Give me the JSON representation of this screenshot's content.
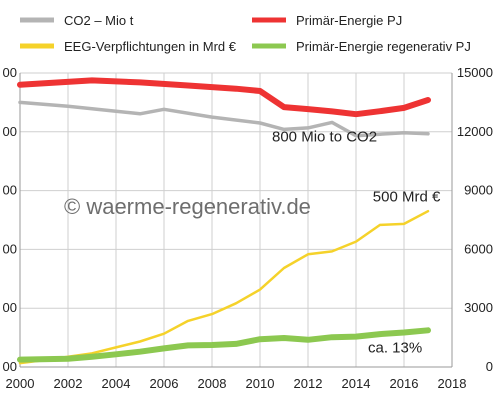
{
  "chart_data": {
    "type": "line",
    "title": "",
    "xlabel": "",
    "ylabel": "",
    "xlim": [
      2000,
      2018
    ],
    "x_ticks": [
      "2000",
      "2002",
      "2004",
      "2006",
      "2008",
      "2010",
      "2012",
      "2014",
      "2016",
      "2018"
    ],
    "y_right_lim": [
      0,
      15000
    ],
    "y_right_ticks": [
      "0",
      "3000",
      "6000",
      "9000",
      "12000",
      "15000"
    ],
    "y_left_ticks": [
      "00",
      "00",
      "00",
      "00",
      "00",
      "00"
    ],
    "grid": true,
    "legend_position": "top",
    "legend": [
      {
        "label": "CO2 – Mio t",
        "color": "#b4b4b4"
      },
      {
        "label": "Primär-Energie PJ",
        "color": "#ee3333"
      },
      {
        "label": "EEG-Verpflichtungen in Mrd €",
        "color": "#f5d22a"
      },
      {
        "label": "Primär-Energie regenerativ PJ",
        "color": "#8cc850"
      }
    ],
    "series": [
      {
        "name": "Primär-Energie PJ",
        "color": "#ee3333",
        "x": [
          2000,
          2003,
          2005,
          2007,
          2009,
          2010,
          2011,
          2012,
          2013,
          2014,
          2015,
          2016,
          2017
        ],
        "values": [
          14400,
          14620,
          14520,
          14360,
          14200,
          14080,
          13260,
          13160,
          13040,
          12900,
          13050,
          13220,
          13620
        ]
      },
      {
        "name": "CO2 – Mio t",
        "color": "#b4b4b4",
        "x": [
          2000,
          2002,
          2004,
          2005,
          2006,
          2008,
          2010,
          2011,
          2012,
          2013,
          2014,
          2015,
          2016,
          2017
        ],
        "values": [
          13500,
          13300,
          13050,
          12920,
          13150,
          12750,
          12450,
          12120,
          12200,
          12480,
          11800,
          11880,
          11950,
          11900
        ]
      },
      {
        "name": "EEG-Verpflichtungen in Mrd €",
        "color": "#f5d22a",
        "x": [
          2000,
          2001,
          2002,
          2003,
          2004,
          2005,
          2006,
          2007,
          2008,
          2009,
          2010,
          2011,
          2012,
          2013,
          2014,
          2015,
          2016,
          2017
        ],
        "values": [
          200,
          350,
          520,
          700,
          1000,
          1300,
          1700,
          2350,
          2700,
          3250,
          3950,
          5050,
          5750,
          5900,
          6400,
          7250,
          7300,
          7950
        ]
      },
      {
        "name": "Primär-Energie regenerativ PJ",
        "color": "#8cc850",
        "x": [
          2000,
          2002,
          2003,
          2004,
          2005,
          2006,
          2007,
          2008,
          2009,
          2010,
          2011,
          2012,
          2013,
          2014,
          2015,
          2016,
          2017
        ],
        "values": [
          380,
          420,
          520,
          650,
          780,
          950,
          1100,
          1120,
          1180,
          1420,
          1480,
          1390,
          1520,
          1550,
          1680,
          1760,
          1870
        ]
      }
    ],
    "annotations": [
      {
        "text": "800 Mio to CO2",
        "x": 2010.5,
        "y": 11500
      },
      {
        "text": "500 Mrd €",
        "x": 2014.7,
        "y": 8450
      },
      {
        "text": "ca. 13%",
        "x": 2014.5,
        "y": 740
      }
    ],
    "watermark": "© waerme-regenerativ.de"
  }
}
